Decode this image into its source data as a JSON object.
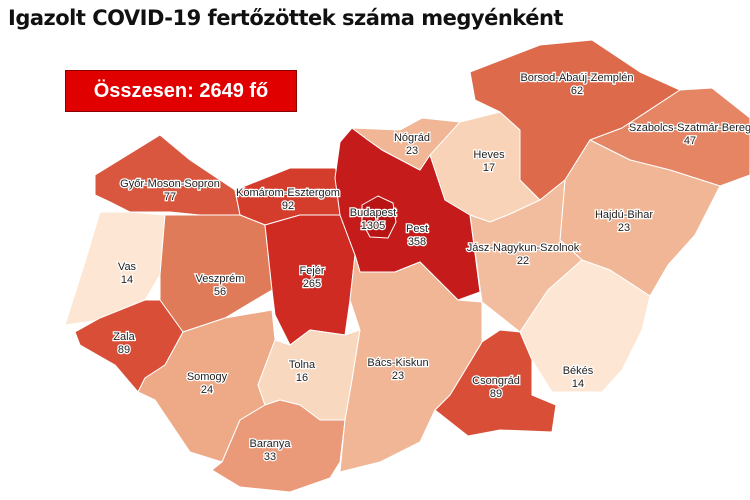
{
  "title": "Igazolt COVID-19 fertőzöttek száma megyénként",
  "total_label": "Összesen: 2649 fő",
  "map": {
    "type": "choropleth",
    "region": "Hungary counties",
    "counties": [
      {
        "id": "gyms",
        "name": "Győr-Moson-Sopron",
        "value": "77",
        "color": "#d9573f"
      },
      {
        "id": "ke",
        "name": "Komárom-Esztergom",
        "value": "92",
        "color": "#d43c2b"
      },
      {
        "id": "vas",
        "name": "Vas",
        "value": "14",
        "color": "#fde6d3"
      },
      {
        "id": "veszprem",
        "name": "Veszprém",
        "value": "56",
        "color": "#e07b59"
      },
      {
        "id": "fejer",
        "name": "Fejér",
        "value": "265",
        "color": "#cf2b22"
      },
      {
        "id": "zala",
        "name": "Zala",
        "value": "89",
        "color": "#d94e37"
      },
      {
        "id": "somogy",
        "name": "Somogy",
        "value": "24",
        "color": "#eeaa87"
      },
      {
        "id": "tolna",
        "name": "Tolna",
        "value": "16",
        "color": "#f9d8c0"
      },
      {
        "id": "baranya",
        "name": "Baranya",
        "value": "33",
        "color": "#ea9a78"
      },
      {
        "id": "pest",
        "name": "Pest",
        "value": "358",
        "color": "#c51b1b"
      },
      {
        "id": "budapest",
        "name": "Budapest",
        "value": "1305",
        "color": "#b81414"
      },
      {
        "id": "nograd",
        "name": "Nógrád",
        "value": "23",
        "color": "#f0b695"
      },
      {
        "id": "heves",
        "name": "Heves",
        "value": "17",
        "color": "#f8d3b8"
      },
      {
        "id": "baz",
        "name": "Borsod-Abaúj-Zemplén",
        "value": "62",
        "color": "#dd6a4b"
      },
      {
        "id": "szszb",
        "name": "Szabolcs-Szatmár-Bereg",
        "value": "47",
        "color": "#e58564"
      },
      {
        "id": "hb",
        "name": "Hajdú-Bihar",
        "value": "23",
        "color": "#f0b695"
      },
      {
        "id": "jnsz",
        "name": "Jász-Nagykun-Szolnok",
        "value": "22",
        "color": "#f2bd9e"
      },
      {
        "id": "bekes",
        "name": "Békés",
        "value": "14",
        "color": "#fde6d3"
      },
      {
        "id": "csongrad",
        "name": "Csongrád",
        "value": "89",
        "color": "#d94e37"
      },
      {
        "id": "bk",
        "name": "Bács-Kiskun",
        "value": "23",
        "color": "#f0b695"
      }
    ]
  }
}
